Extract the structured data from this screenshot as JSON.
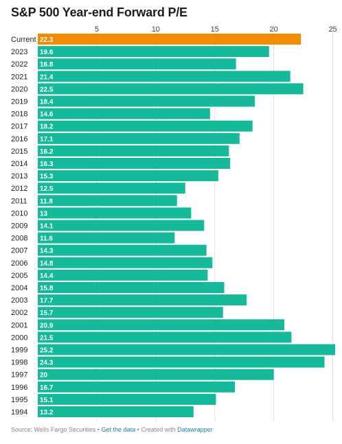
{
  "title": "S&P 500 Year-end Forward P/E",
  "footer": {
    "source": "Source: Wells Fargo Securities",
    "sep1": " • ",
    "get_data": "Get the data",
    "sep2": " • Created with ",
    "datawrapper": "Datawrapper"
  },
  "colors": {
    "highlight": "#f28c00",
    "bar": "#16b99a",
    "grid": "#e0e0e0"
  },
  "chart_data": {
    "type": "bar",
    "orientation": "horizontal",
    "xlim": [
      0,
      25.2
    ],
    "xticks": [
      5,
      10,
      15,
      20,
      25
    ],
    "highlight_category": "Current",
    "categories": [
      "Current",
      "2023",
      "2022",
      "2021",
      "2020",
      "2019",
      "2018",
      "2017",
      "2016",
      "2015",
      "2014",
      "2013",
      "2012",
      "2011",
      "2010",
      "2009",
      "2008",
      "2007",
      "2006",
      "2005",
      "2004",
      "2003",
      "2002",
      "2001",
      "2000",
      "1999",
      "1998",
      "1997",
      "1996",
      "1995",
      "1994"
    ],
    "values": [
      22.3,
      19.6,
      16.8,
      21.4,
      22.5,
      18.4,
      14.6,
      18.2,
      17.1,
      16.2,
      16.3,
      15.3,
      12.5,
      11.8,
      13,
      14.1,
      11.6,
      14.3,
      14.8,
      14.4,
      15.8,
      17.7,
      15.7,
      20.9,
      21.5,
      25.2,
      24.3,
      20,
      16.7,
      15.1,
      13.2
    ],
    "value_labels": [
      "22.3",
      "19.6",
      "16.8",
      "21.4",
      "22.5",
      "18.4",
      "14.6",
      "18.2",
      "17.1",
      "16.2",
      "16.3",
      "15.3",
      "12.5",
      "11.8",
      "13",
      "14.1",
      "11.6",
      "14.3",
      "14.8",
      "14.4",
      "15.8",
      "17.7",
      "15.7",
      "20.9",
      "21.5",
      "25.2",
      "24.3",
      "20",
      "16.7",
      "15.1",
      "13.2"
    ]
  }
}
